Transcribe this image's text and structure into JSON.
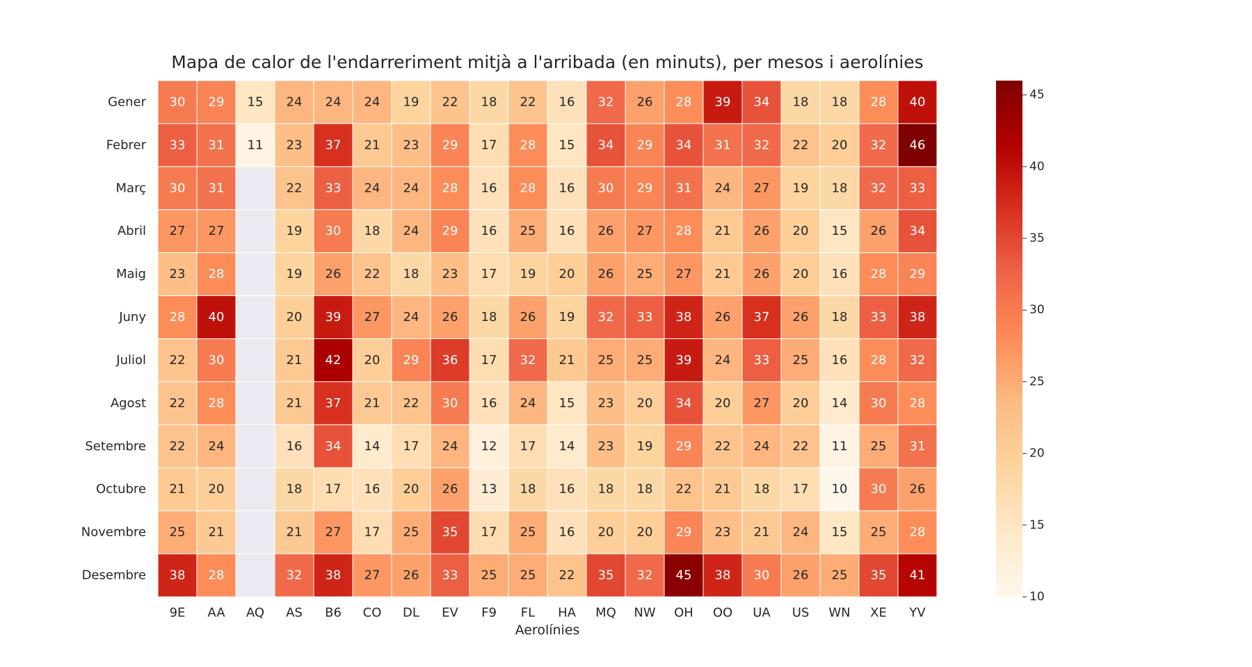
{
  "chart_data": {
    "type": "heatmap",
    "title": "Mapa de calor de l'endarreriment mitjà a l'arribada (en minuts), per mesos i aerolínies",
    "xlabel": "Aerolínies",
    "ylabel": "",
    "x_categories": [
      "9E",
      "AA",
      "AQ",
      "AS",
      "B6",
      "CO",
      "DL",
      "EV",
      "F9",
      "FL",
      "HA",
      "MQ",
      "NW",
      "OH",
      "OO",
      "UA",
      "US",
      "WN",
      "XE",
      "YV"
    ],
    "y_categories": [
      "Gener",
      "Febrer",
      "Març",
      "Abril",
      "Maig",
      "Juny",
      "Juliol",
      "Agost",
      "Setembre",
      "Octubre",
      "Novembre",
      "Desembre"
    ],
    "values": [
      [
        30,
        29,
        15,
        24,
        24,
        24,
        19,
        22,
        18,
        22,
        16,
        32,
        26,
        28,
        39,
        34,
        18,
        18,
        28,
        40
      ],
      [
        33,
        31,
        11,
        23,
        37,
        21,
        23,
        29,
        17,
        28,
        15,
        34,
        29,
        34,
        31,
        32,
        22,
        20,
        32,
        46
      ],
      [
        30,
        31,
        null,
        22,
        33,
        24,
        24,
        28,
        16,
        28,
        16,
        30,
        29,
        31,
        24,
        27,
        19,
        18,
        32,
        33
      ],
      [
        27,
        27,
        null,
        19,
        30,
        18,
        24,
        29,
        16,
        25,
        16,
        26,
        27,
        28,
        21,
        26,
        20,
        15,
        26,
        34
      ],
      [
        23,
        28,
        null,
        19,
        26,
        22,
        18,
        23,
        17,
        19,
        20,
        26,
        25,
        27,
        21,
        26,
        20,
        16,
        28,
        29
      ],
      [
        28,
        40,
        null,
        20,
        39,
        27,
        24,
        26,
        18,
        26,
        19,
        32,
        33,
        38,
        26,
        37,
        26,
        18,
        33,
        38
      ],
      [
        22,
        30,
        null,
        21,
        42,
        20,
        29,
        36,
        17,
        32,
        21,
        25,
        25,
        39,
        24,
        33,
        25,
        16,
        28,
        32
      ],
      [
        22,
        28,
        null,
        21,
        37,
        21,
        22,
        30,
        16,
        24,
        15,
        23,
        20,
        34,
        20,
        27,
        20,
        14,
        30,
        28
      ],
      [
        22,
        24,
        null,
        16,
        34,
        14,
        17,
        24,
        12,
        17,
        14,
        23,
        19,
        29,
        22,
        24,
        22,
        11,
        25,
        31
      ],
      [
        21,
        20,
        null,
        18,
        17,
        16,
        20,
        26,
        13,
        18,
        16,
        18,
        18,
        22,
        21,
        18,
        17,
        10,
        30,
        26
      ],
      [
        25,
        21,
        null,
        21,
        27,
        17,
        25,
        35,
        17,
        25,
        16,
        20,
        20,
        29,
        23,
        21,
        24,
        15,
        25,
        28
      ],
      [
        38,
        28,
        null,
        32,
        38,
        27,
        26,
        33,
        25,
        25,
        22,
        35,
        32,
        45,
        38,
        30,
        26,
        25,
        35,
        41
      ]
    ],
    "colormap": "OrRd",
    "vmin": 10,
    "vmax": 46,
    "colorbar_ticks": [
      10,
      15,
      20,
      25,
      30,
      35,
      40,
      45
    ],
    "missing_color": "#eaeaf2",
    "grid": false
  }
}
